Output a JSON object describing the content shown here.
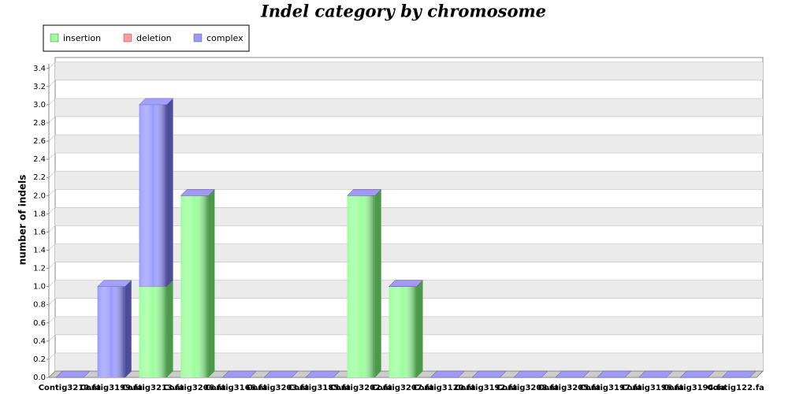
{
  "chart_data": {
    "type": "bar3d_stacked",
    "title": "Indel category by chromosome",
    "y_label": "number of indels",
    "categories": [
      "Contig3210.fa",
      "Contig3199.fa",
      "Contig3213.fa",
      "Contig3206.fa",
      "Contig3166.fa",
      "Contig3203.fa",
      "Contig3185.fa",
      "Contig3202.fa",
      "Contig3207.fa",
      "Contig3120.fa",
      "Contig3192.fa",
      "Contig3208.fa",
      "Contig3205.fa",
      "Contig3197.fa",
      "Contig3196.fa",
      "Contig3194.fa",
      "Contig122.fa"
    ],
    "series": [
      {
        "name": "insertion",
        "color": "#99ff99",
        "side": "#4c994c",
        "values": [
          0,
          0,
          1,
          2,
          0,
          0,
          0,
          2,
          1,
          0,
          0,
          0,
          0,
          0,
          0,
          0,
          0
        ]
      },
      {
        "name": "deletion",
        "color": "#ff9999",
        "side": "#994c4c",
        "values": [
          0,
          0,
          0,
          0,
          0,
          0,
          0,
          0,
          0,
          0,
          0,
          0,
          0,
          0,
          0,
          0,
          0
        ]
      },
      {
        "name": "complex",
        "color": "#9999ff",
        "side": "#4c4c99",
        "values": [
          0,
          1,
          2,
          0,
          0,
          0,
          0,
          0,
          0,
          0,
          0,
          0,
          0,
          0,
          0,
          0,
          0
        ]
      }
    ],
    "ylim": [
      0,
      3.45
    ],
    "yticks": [
      {
        "value": 0,
        "label": "0.0"
      },
      {
        "value": 0.2,
        "label": "0.2"
      },
      {
        "value": 0.4,
        "label": "0.4"
      },
      {
        "value": 0.6,
        "label": "0.6"
      },
      {
        "value": 0.8,
        "label": "0.8"
      },
      {
        "value": 1,
        "label": "1.0"
      },
      {
        "value": 1.2,
        "label": "1.2"
      },
      {
        "value": 1.4,
        "label": "1.4"
      },
      {
        "value": 1.6,
        "label": "1.6"
      },
      {
        "value": 1.8,
        "label": "1.8"
      },
      {
        "value": 2,
        "label": "2.0"
      },
      {
        "value": 2.2,
        "label": "2.2"
      },
      {
        "value": 2.4,
        "label": "2.4"
      },
      {
        "value": 2.6,
        "label": "2.6"
      },
      {
        "value": 2.8,
        "label": "2.8"
      },
      {
        "value": 3,
        "label": "3.0"
      },
      {
        "value": 3.2,
        "label": "3.2"
      },
      {
        "value": 3.4,
        "label": "3.4"
      }
    ],
    "grid": true
  }
}
